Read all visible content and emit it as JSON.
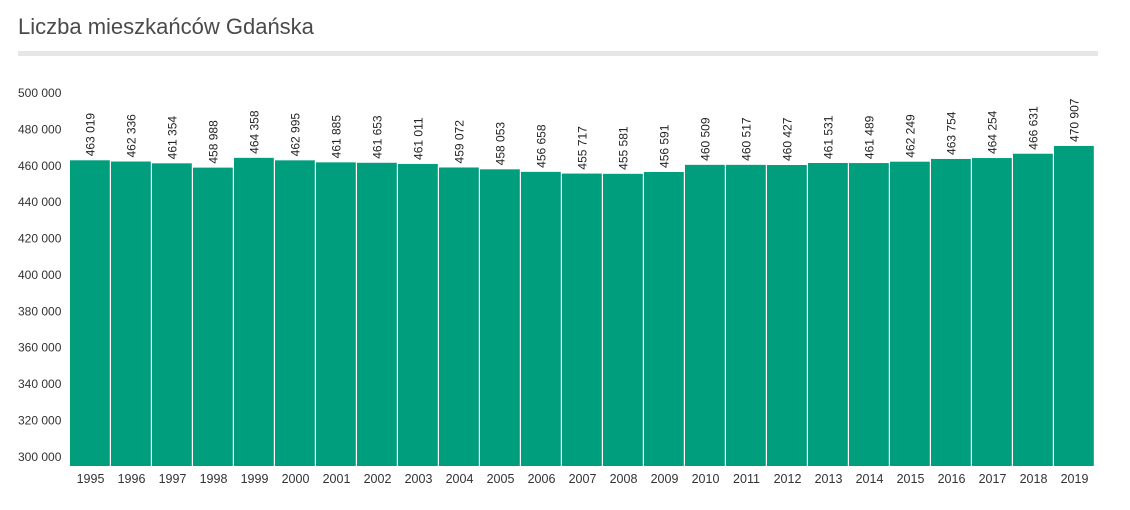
{
  "title": "Liczba mieszkańców Gdańska",
  "colors": {
    "bar": "#009e7d",
    "title_rule": "#e6e6e6"
  },
  "chart_data": {
    "type": "bar",
    "title": "Liczba mieszkańców Gdańska",
    "xlabel": "",
    "ylabel": "",
    "categories": [
      "1995",
      "1996",
      "1997",
      "1998",
      "1999",
      "2000",
      "2001",
      "2002",
      "2003",
      "2004",
      "2005",
      "2006",
      "2007",
      "2008",
      "2009",
      "2010",
      "2011",
      "2012",
      "2013",
      "2014",
      "2015",
      "2016",
      "2017",
      "2018",
      "2019"
    ],
    "values": [
      463019,
      462336,
      461354,
      458988,
      464358,
      462995,
      461885,
      461653,
      461011,
      459072,
      458053,
      456658,
      455717,
      455581,
      456591,
      460509,
      460517,
      460427,
      461531,
      461489,
      462249,
      463754,
      464254,
      466631,
      470907
    ],
    "data_labels": [
      "463 019",
      "462 336",
      "461 354",
      "458 988",
      "464 358",
      "462 995",
      "461 885",
      "461 653",
      "461 011",
      "459 072",
      "458 053",
      "456 658",
      "455 717",
      "455 581",
      "456 591",
      "460 509",
      "460 517",
      "460 427",
      "461 531",
      "461 489",
      "462 249",
      "463 754",
      "464 254",
      "466 631",
      "470 907"
    ],
    "y_ticks": [
      300000,
      320000,
      340000,
      360000,
      380000,
      400000,
      420000,
      440000,
      460000,
      480000,
      500000
    ],
    "y_tick_labels": [
      "300 000",
      "320 000",
      "340 000",
      "360 000",
      "380 000",
      "400 000",
      "420 000",
      "440 000",
      "460 000",
      "480 000",
      "500 000"
    ],
    "ylim": [
      295000,
      500000
    ],
    "grid": false,
    "legend": "none"
  }
}
